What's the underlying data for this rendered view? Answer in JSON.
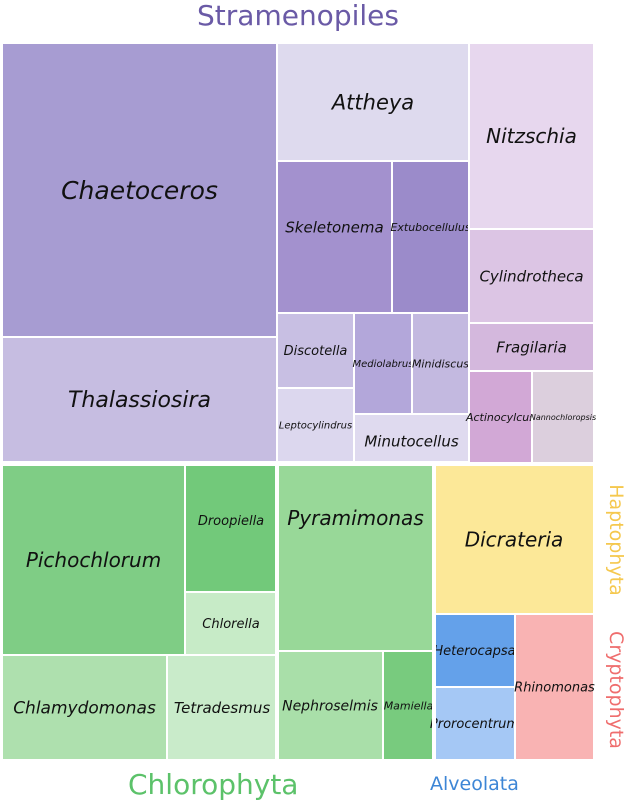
{
  "chart_data": {
    "type": "treemap",
    "groups": [
      {
        "name": "Stramenopiles",
        "color": "#6a5aa6",
        "items": [
          {
            "name": "Chaetoceros",
            "value": 82.6,
            "color": "#a79cd2"
          },
          {
            "name": "Thalassiosira",
            "value": 34.8,
            "color": "#c6bde1"
          },
          {
            "name": "Attheya",
            "value": 23.1,
            "color": "#dedaee"
          },
          {
            "name": "Skeletonema",
            "value": 19.1,
            "color": "#a391ce"
          },
          {
            "name": "Extubocellulus",
            "value": 10.5,
            "color": "#9b8bca"
          },
          {
            "name": "Discotella",
            "value": 5.9,
            "color": "#c8bfe3"
          },
          {
            "name": "Mediolabrus",
            "value": 4.4,
            "color": "#b3a7da"
          },
          {
            "name": "Minidiscus",
            "value": 4.9,
            "color": "#c3b9e0"
          },
          {
            "name": "Leptocylindrus",
            "value": 5.8,
            "color": "#dcd7ee"
          },
          {
            "name": "Minutocellus",
            "value": 6.7,
            "color": "#dfdaef"
          },
          {
            "name": "Nitzschia",
            "value": 24.2,
            "color": "#e7d7ee"
          },
          {
            "name": "Cylindrotheca",
            "value": 11.8,
            "color": "#dcc5e4"
          },
          {
            "name": "Fragilaria",
            "value": 6.0,
            "color": "#d4b8dd"
          },
          {
            "name": "Actinocylcus",
            "value": 6.0,
            "color": "#d2a8d6"
          },
          {
            "name": "Nannochloropsis",
            "value": 6.0,
            "color": "#dccfdd"
          }
        ]
      },
      {
        "name": "Chlorophyta",
        "color": "#5cc26a",
        "items": [
          {
            "name": "Pichochlorum",
            "value": 34.6,
            "color": "#7fcd85"
          },
          {
            "name": "Droopiella",
            "value": 11.2,
            "color": "#72c97a"
          },
          {
            "name": "Chlorella",
            "value": 6.0,
            "color": "#c7ebc7"
          },
          {
            "name": "Chlamydomonas",
            "value": 17.5,
            "color": "#aee0ae"
          },
          {
            "name": "Tetradesmus",
            "value": 11.9,
            "color": "#c9ebca"
          },
          {
            "name": "Pyramimonas",
            "value": 30.4,
            "color": "#98d898"
          },
          {
            "name": "Nephroselmis",
            "value": 11.4,
            "color": "#a9dfa9"
          },
          {
            "name": "Mamiella",
            "value": 5.2,
            "color": "#78cb7e"
          }
        ]
      },
      {
        "name": "Haptophyta",
        "color": "#f5c84e",
        "items": [
          {
            "name": "Dicrateria",
            "value": 24.2,
            "color": "#fce898"
          }
        ]
      },
      {
        "name": "Alveolata",
        "color": "#3d86d6",
        "items": [
          {
            "name": "Heterocapsa",
            "value": 5.3,
            "color": "#64a1ea"
          },
          {
            "name": "Prorocentrum",
            "value": 7.1,
            "color": "#a5c8f5"
          }
        ]
      },
      {
        "name": "Cryptophyta",
        "color": "#ef6d6d",
        "items": [
          {
            "name": "Rhinomonas",
            "value": 12.8,
            "color": "#f9b3b3"
          }
        ]
      }
    ]
  }
}
